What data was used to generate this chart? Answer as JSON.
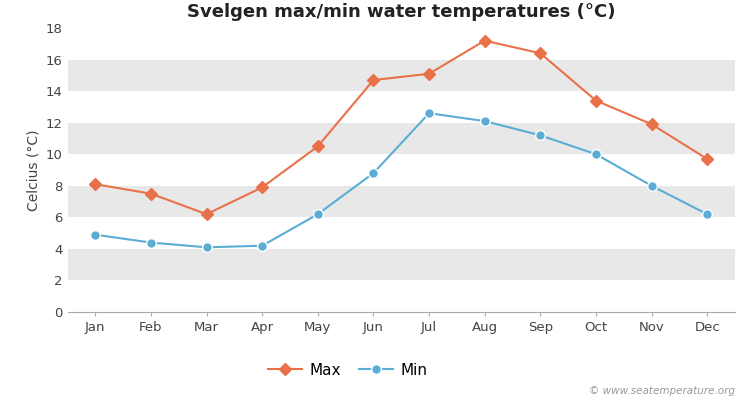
{
  "months": [
    "Jan",
    "Feb",
    "Mar",
    "Apr",
    "May",
    "Jun",
    "Jul",
    "Aug",
    "Sep",
    "Oct",
    "Nov",
    "Dec"
  ],
  "max_temps": [
    8.1,
    7.5,
    6.2,
    7.9,
    10.5,
    14.7,
    15.1,
    17.2,
    16.4,
    13.4,
    11.9,
    9.7
  ],
  "min_temps": [
    4.9,
    4.4,
    4.1,
    4.2,
    6.2,
    8.8,
    12.6,
    12.1,
    11.2,
    10.0,
    8.0,
    6.2
  ],
  "max_color": "#e8714a",
  "min_color": "#5badd4",
  "title": "Svelgen max/min water temperatures (°C)",
  "ylabel": "Celcius (°C)",
  "ylim": [
    0,
    18
  ],
  "yticks": [
    0,
    2,
    4,
    6,
    8,
    10,
    12,
    14,
    16,
    18
  ],
  "fig_bg": "#ffffff",
  "plot_bg": "#ffffff",
  "stripe_color": "#e8e8e8",
  "watermark": "© www.seatemperature.org",
  "legend_max": "Max",
  "legend_min": "Min",
  "title_fontsize": 13,
  "label_fontsize": 10,
  "tick_fontsize": 9.5
}
